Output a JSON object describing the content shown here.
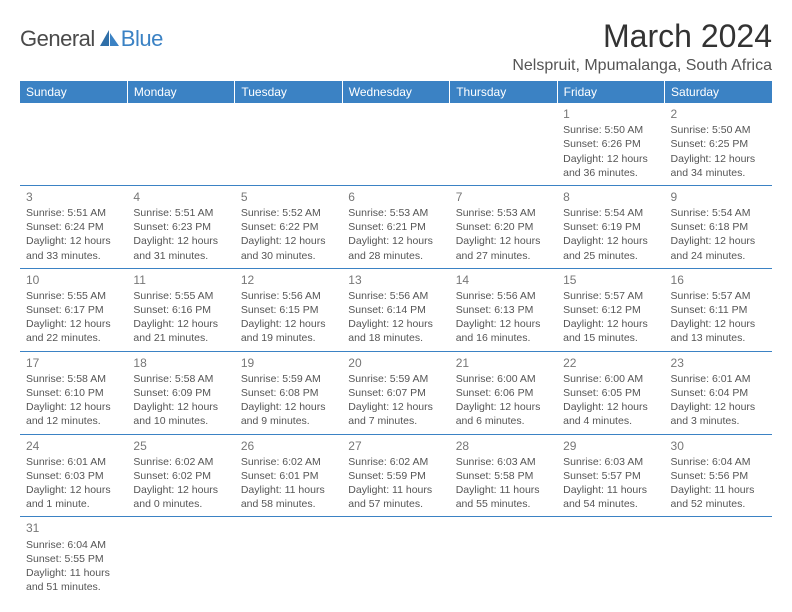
{
  "logo": {
    "part1": "General",
    "part2": "Blue"
  },
  "title": "March 2024",
  "location": "Nelspruit, Mpumalanga, South Africa",
  "colors": {
    "header_bg": "#3b82c4",
    "header_fg": "#ffffff",
    "body_bg": "#ffffff",
    "text": "#555555",
    "border": "#3b82c4"
  },
  "weekdays": [
    "Sunday",
    "Monday",
    "Tuesday",
    "Wednesday",
    "Thursday",
    "Friday",
    "Saturday"
  ],
  "weeks": [
    [
      null,
      null,
      null,
      null,
      null,
      {
        "n": "1",
        "sr": "Sunrise: 5:50 AM",
        "ss": "Sunset: 6:26 PM",
        "dl1": "Daylight: 12 hours",
        "dl2": "and 36 minutes."
      },
      {
        "n": "2",
        "sr": "Sunrise: 5:50 AM",
        "ss": "Sunset: 6:25 PM",
        "dl1": "Daylight: 12 hours",
        "dl2": "and 34 minutes."
      }
    ],
    [
      {
        "n": "3",
        "sr": "Sunrise: 5:51 AM",
        "ss": "Sunset: 6:24 PM",
        "dl1": "Daylight: 12 hours",
        "dl2": "and 33 minutes."
      },
      {
        "n": "4",
        "sr": "Sunrise: 5:51 AM",
        "ss": "Sunset: 6:23 PM",
        "dl1": "Daylight: 12 hours",
        "dl2": "and 31 minutes."
      },
      {
        "n": "5",
        "sr": "Sunrise: 5:52 AM",
        "ss": "Sunset: 6:22 PM",
        "dl1": "Daylight: 12 hours",
        "dl2": "and 30 minutes."
      },
      {
        "n": "6",
        "sr": "Sunrise: 5:53 AM",
        "ss": "Sunset: 6:21 PM",
        "dl1": "Daylight: 12 hours",
        "dl2": "and 28 minutes."
      },
      {
        "n": "7",
        "sr": "Sunrise: 5:53 AM",
        "ss": "Sunset: 6:20 PM",
        "dl1": "Daylight: 12 hours",
        "dl2": "and 27 minutes."
      },
      {
        "n": "8",
        "sr": "Sunrise: 5:54 AM",
        "ss": "Sunset: 6:19 PM",
        "dl1": "Daylight: 12 hours",
        "dl2": "and 25 minutes."
      },
      {
        "n": "9",
        "sr": "Sunrise: 5:54 AM",
        "ss": "Sunset: 6:18 PM",
        "dl1": "Daylight: 12 hours",
        "dl2": "and 24 minutes."
      }
    ],
    [
      {
        "n": "10",
        "sr": "Sunrise: 5:55 AM",
        "ss": "Sunset: 6:17 PM",
        "dl1": "Daylight: 12 hours",
        "dl2": "and 22 minutes."
      },
      {
        "n": "11",
        "sr": "Sunrise: 5:55 AM",
        "ss": "Sunset: 6:16 PM",
        "dl1": "Daylight: 12 hours",
        "dl2": "and 21 minutes."
      },
      {
        "n": "12",
        "sr": "Sunrise: 5:56 AM",
        "ss": "Sunset: 6:15 PM",
        "dl1": "Daylight: 12 hours",
        "dl2": "and 19 minutes."
      },
      {
        "n": "13",
        "sr": "Sunrise: 5:56 AM",
        "ss": "Sunset: 6:14 PM",
        "dl1": "Daylight: 12 hours",
        "dl2": "and 18 minutes."
      },
      {
        "n": "14",
        "sr": "Sunrise: 5:56 AM",
        "ss": "Sunset: 6:13 PM",
        "dl1": "Daylight: 12 hours",
        "dl2": "and 16 minutes."
      },
      {
        "n": "15",
        "sr": "Sunrise: 5:57 AM",
        "ss": "Sunset: 6:12 PM",
        "dl1": "Daylight: 12 hours",
        "dl2": "and 15 minutes."
      },
      {
        "n": "16",
        "sr": "Sunrise: 5:57 AM",
        "ss": "Sunset: 6:11 PM",
        "dl1": "Daylight: 12 hours",
        "dl2": "and 13 minutes."
      }
    ],
    [
      {
        "n": "17",
        "sr": "Sunrise: 5:58 AM",
        "ss": "Sunset: 6:10 PM",
        "dl1": "Daylight: 12 hours",
        "dl2": "and 12 minutes."
      },
      {
        "n": "18",
        "sr": "Sunrise: 5:58 AM",
        "ss": "Sunset: 6:09 PM",
        "dl1": "Daylight: 12 hours",
        "dl2": "and 10 minutes."
      },
      {
        "n": "19",
        "sr": "Sunrise: 5:59 AM",
        "ss": "Sunset: 6:08 PM",
        "dl1": "Daylight: 12 hours",
        "dl2": "and 9 minutes."
      },
      {
        "n": "20",
        "sr": "Sunrise: 5:59 AM",
        "ss": "Sunset: 6:07 PM",
        "dl1": "Daylight: 12 hours",
        "dl2": "and 7 minutes."
      },
      {
        "n": "21",
        "sr": "Sunrise: 6:00 AM",
        "ss": "Sunset: 6:06 PM",
        "dl1": "Daylight: 12 hours",
        "dl2": "and 6 minutes."
      },
      {
        "n": "22",
        "sr": "Sunrise: 6:00 AM",
        "ss": "Sunset: 6:05 PM",
        "dl1": "Daylight: 12 hours",
        "dl2": "and 4 minutes."
      },
      {
        "n": "23",
        "sr": "Sunrise: 6:01 AM",
        "ss": "Sunset: 6:04 PM",
        "dl1": "Daylight: 12 hours",
        "dl2": "and 3 minutes."
      }
    ],
    [
      {
        "n": "24",
        "sr": "Sunrise: 6:01 AM",
        "ss": "Sunset: 6:03 PM",
        "dl1": "Daylight: 12 hours",
        "dl2": "and 1 minute."
      },
      {
        "n": "25",
        "sr": "Sunrise: 6:02 AM",
        "ss": "Sunset: 6:02 PM",
        "dl1": "Daylight: 12 hours",
        "dl2": "and 0 minutes."
      },
      {
        "n": "26",
        "sr": "Sunrise: 6:02 AM",
        "ss": "Sunset: 6:01 PM",
        "dl1": "Daylight: 11 hours",
        "dl2": "and 58 minutes."
      },
      {
        "n": "27",
        "sr": "Sunrise: 6:02 AM",
        "ss": "Sunset: 5:59 PM",
        "dl1": "Daylight: 11 hours",
        "dl2": "and 57 minutes."
      },
      {
        "n": "28",
        "sr": "Sunrise: 6:03 AM",
        "ss": "Sunset: 5:58 PM",
        "dl1": "Daylight: 11 hours",
        "dl2": "and 55 minutes."
      },
      {
        "n": "29",
        "sr": "Sunrise: 6:03 AM",
        "ss": "Sunset: 5:57 PM",
        "dl1": "Daylight: 11 hours",
        "dl2": "and 54 minutes."
      },
      {
        "n": "30",
        "sr": "Sunrise: 6:04 AM",
        "ss": "Sunset: 5:56 PM",
        "dl1": "Daylight: 11 hours",
        "dl2": "and 52 minutes."
      }
    ],
    [
      {
        "n": "31",
        "sr": "Sunrise: 6:04 AM",
        "ss": "Sunset: 5:55 PM",
        "dl1": "Daylight: 11 hours",
        "dl2": "and 51 minutes."
      },
      null,
      null,
      null,
      null,
      null,
      null
    ]
  ]
}
